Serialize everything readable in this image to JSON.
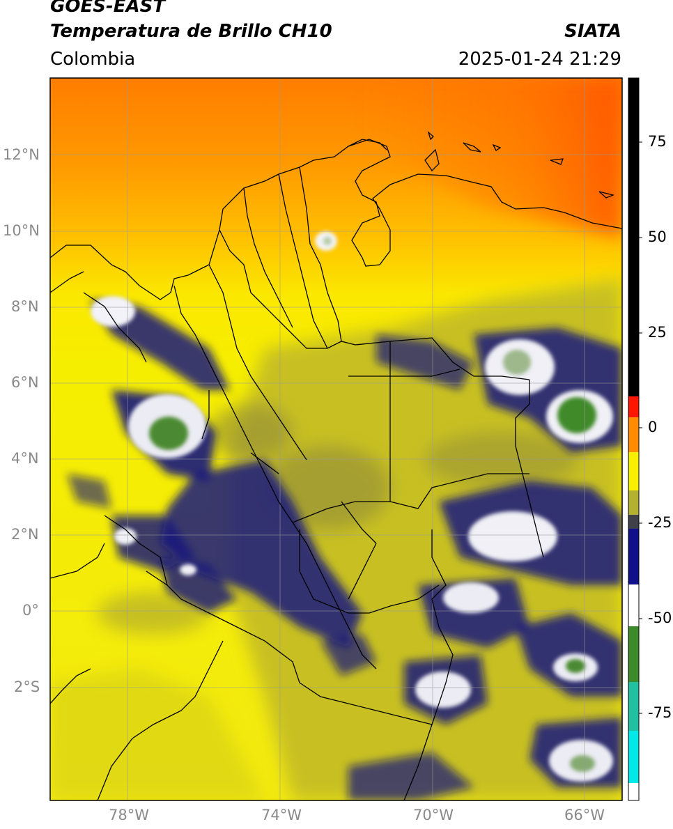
{
  "header": {
    "satellite": "GOES-EAST",
    "product": "Temperatura de Brillo CH10",
    "region": "Colombia",
    "source": "SIATA",
    "datetime": "2025-01-24 21:29"
  },
  "map": {
    "lat_ticks": [
      "12°N",
      "10°N",
      "8°N",
      "6°N",
      "4°N",
      "2°N",
      "0°",
      "2°S"
    ],
    "lon_ticks": [
      "78°W",
      "74°W",
      "70°W",
      "66°W"
    ],
    "colors": {
      "warm_top": "#ff7a00",
      "warm_mid": "#ffb000",
      "yellow": "#f8ef00",
      "olive": "#c8c020",
      "dark_olive": "#8f8a3a",
      "navy": "#14147e",
      "white": "#f4f4f8",
      "green": "#4c8a30",
      "border": "#000000",
      "grid": "#9a9a9a"
    }
  },
  "colorbar": {
    "tick_labels": [
      "75",
      "50",
      "25",
      "0",
      "-25",
      "-50",
      "-75"
    ],
    "colors": [
      "#000000",
      "#ff0000",
      "#ff8c00",
      "#f8f000",
      "#b4b030",
      "#40404a",
      "#10108a",
      "#ffffff",
      "#3c8a2a",
      "#20c0a0",
      "#00e8e8"
    ]
  }
}
